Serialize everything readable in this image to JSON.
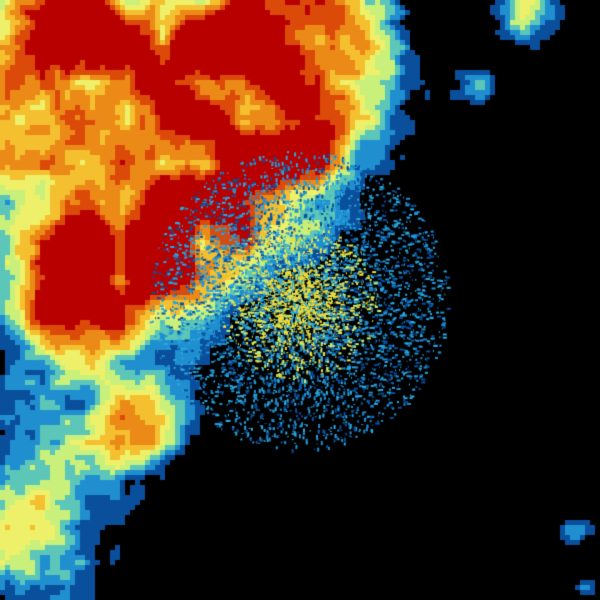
{
  "radar": {
    "background": "#000000",
    "palette": [
      "#0a4f9c",
      "#1f8fd0",
      "#5cc6b8",
      "#c8f07a",
      "#eef06a",
      "#f4c030",
      "#ec8a18",
      "#dc4a0a",
      "#b80000"
    ],
    "center_speckle_colors": [
      "#1f8fd0",
      "#2aa8e0",
      "#0a4f9c",
      "#eede3a",
      "#c8f07a"
    ]
  }
}
